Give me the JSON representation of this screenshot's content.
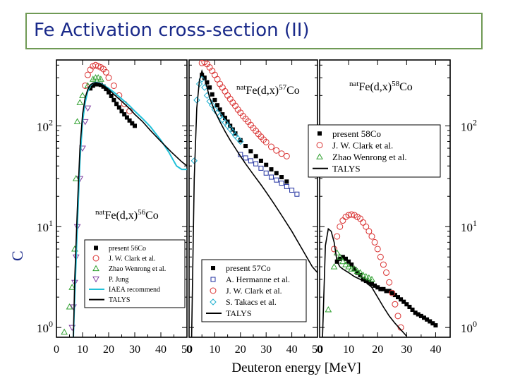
{
  "slide": {
    "title": "Fe  Activation cross-section (II)",
    "y_axis_label_fragment": "C"
  },
  "chart_data": [
    {
      "type": "scatter",
      "reaction_label": "natFe(d,x)56Co",
      "reaction_prefix": "nat",
      "reaction_main": "Fe(d,x)",
      "reaction_mass": "56",
      "reaction_element": "Co",
      "xlabel": "",
      "xlim": [
        0,
        50
      ],
      "ylim": [
        0.8,
        450
      ],
      "log_y": true,
      "x_ticks": [
        0,
        10,
        20,
        30,
        40,
        50
      ],
      "legend": {
        "position": "bottom-right",
        "entries": [
          "present 56Co",
          "J. W. Clark et al.",
          "Zhao Wenrong et al.",
          "P. Jung",
          "IAEA recommend",
          "TALYS"
        ]
      },
      "series": [
        {
          "name": "present 56Co",
          "marker": "square-filled",
          "color": "#000000",
          "x": [
            13,
            14,
            15,
            16,
            17,
            18,
            19,
            20,
            21,
            22,
            23,
            24,
            25,
            26,
            27,
            28,
            29,
            30
          ],
          "y": [
            235,
            250,
            258,
            258,
            255,
            245,
            232,
            215,
            198,
            180,
            165,
            152,
            140,
            130,
            121,
            113,
            106,
            100
          ]
        },
        {
          "name": "J. W. Clark et al.",
          "marker": "circle-open",
          "color": "#d93030",
          "x": [
            11,
            12,
            13,
            14,
            15,
            16,
            17,
            18,
            19,
            20,
            22,
            24,
            26,
            28
          ],
          "y": [
            250,
            320,
            360,
            390,
            400,
            390,
            380,
            365,
            340,
            300,
            250,
            200,
            165,
            140
          ]
        },
        {
          "name": "Zhao Wenrong et al.",
          "marker": "triangle-up-open",
          "color": "#30a030",
          "x": [
            3,
            5,
            6,
            7,
            7.5,
            8,
            9,
            10,
            12,
            14,
            15,
            16,
            17
          ],
          "y": [
            0.9,
            1.6,
            2.5,
            6,
            30,
            110,
            170,
            200,
            250,
            290,
            300,
            300,
            290
          ]
        },
        {
          "name": "P. Jung",
          "marker": "triangle-down-open",
          "color": "#8040a0",
          "x": [
            6,
            6.5,
            7,
            7.5,
            8,
            9,
            10,
            11,
            12
          ],
          "y": [
            1.0,
            1.6,
            2.8,
            5,
            10,
            30,
            60,
            110,
            150
          ]
        },
        {
          "name": "IAEA recommend",
          "marker": "line",
          "color": "#20c0d8",
          "x": [
            6.5,
            7,
            8,
            9,
            10,
            11,
            12,
            13,
            14,
            15,
            16,
            17,
            18,
            20,
            22,
            25,
            28,
            30,
            33,
            36,
            40,
            43,
            46,
            48,
            50
          ],
          "y": [
            0.8,
            2,
            10,
            45,
            110,
            170,
            220,
            250,
            265,
            270,
            268,
            262,
            255,
            235,
            215,
            185,
            158,
            140,
            118,
            98,
            72,
            55,
            40,
            37,
            37
          ]
        },
        {
          "name": "TALYS",
          "marker": "line",
          "color": "#000000",
          "x": [
            6.5,
            7,
            8,
            9,
            10,
            11,
            12,
            13,
            14,
            15,
            16,
            17,
            18,
            20,
            22,
            25,
            28,
            30,
            33,
            36,
            40,
            44,
            48,
            50
          ],
          "y": [
            0.8,
            3,
            15,
            60,
            130,
            190,
            230,
            255,
            265,
            268,
            266,
            260,
            252,
            230,
            205,
            175,
            148,
            130,
            110,
            90,
            70,
            55,
            44,
            40
          ]
        }
      ]
    },
    {
      "type": "scatter",
      "reaction_label": "natFe(d,x)57Co",
      "reaction_prefix": "nat",
      "reaction_main": "Fe(d,x)",
      "reaction_mass": "57",
      "reaction_element": "Co",
      "xlabel": "",
      "xlim": [
        0,
        50
      ],
      "ylim": [
        0.8,
        450
      ],
      "log_y": true,
      "x_ticks": [
        0,
        10,
        20,
        30,
        40,
        50
      ],
      "legend": {
        "position": "bottom-right",
        "entries": [
          "present 57Co",
          "A. Hermanne et al.",
          "J. W. Clark et al.",
          "S. Takacs et al.",
          "TALYS"
        ]
      },
      "series": [
        {
          "name": "present 57Co",
          "marker": "square-filled",
          "color": "#000000",
          "x": [
            5,
            6,
            7,
            8,
            9,
            10,
            11,
            12,
            13,
            14,
            15,
            16,
            17,
            18,
            20,
            22,
            24,
            26,
            28,
            30,
            32,
            34,
            36,
            38
          ],
          "y": [
            320,
            300,
            270,
            240,
            205,
            180,
            160,
            145,
            130,
            120,
            110,
            100,
            92,
            84,
            72,
            63,
            56,
            50,
            45,
            41,
            37,
            34,
            31,
            28
          ]
        },
        {
          "name": "A. Hermanne et al.",
          "marker": "square-open",
          "color": "#2030a0",
          "x": [
            20,
            22,
            24,
            26,
            28,
            30,
            32,
            34,
            36,
            38,
            40,
            42
          ],
          "y": [
            52,
            48,
            45,
            42,
            38,
            34,
            31,
            29,
            27,
            25,
            23,
            21
          ]
        },
        {
          "name": "J. W. Clark et al.",
          "marker": "circle-open",
          "color": "#d93030",
          "x": [
            5,
            6,
            7,
            8,
            9,
            10,
            11,
            12,
            13,
            14,
            15,
            16,
            17,
            18,
            19,
            20,
            21,
            22,
            23,
            24,
            25,
            26,
            27,
            28,
            29,
            30,
            32,
            34,
            36,
            38
          ],
          "y": [
            420,
            430,
            410,
            380,
            350,
            320,
            290,
            260,
            240,
            220,
            200,
            185,
            170,
            158,
            145,
            135,
            125,
            117,
            110,
            102,
            95,
            89,
            83,
            78,
            73,
            69,
            62,
            57,
            53,
            50
          ]
        },
        {
          "name": "S. Takacs et al.",
          "marker": "diamond-open",
          "color": "#20b0d0",
          "x": [
            2,
            3,
            4,
            5,
            6,
            7,
            8,
            9,
            10,
            11,
            12,
            13,
            14,
            15,
            16,
            17,
            18,
            19,
            20
          ],
          "y": [
            45,
            180,
            260,
            290,
            240,
            200,
            175,
            160,
            145,
            135,
            125,
            115,
            108,
            100,
            93,
            87,
            80,
            75,
            70
          ]
        },
        {
          "name": "TALYS",
          "marker": "line",
          "color": "#000000",
          "x": [
            1,
            2,
            3,
            4,
            5,
            6,
            7,
            8,
            10,
            12,
            14,
            16,
            18,
            20,
            22,
            25,
            28,
            30,
            33,
            36,
            40,
            44,
            48,
            50
          ],
          "y": [
            0.8,
            30,
            150,
            280,
            350,
            300,
            240,
            190,
            140,
            110,
            88,
            72,
            60,
            50,
            42,
            33,
            26,
            22,
            17,
            13,
            9,
            6,
            4,
            3.5
          ]
        }
      ]
    },
    {
      "type": "scatter",
      "reaction_label": "natFe(d,x)58Co",
      "reaction_prefix": "nat",
      "reaction_main": "Fe(d,x)",
      "reaction_mass": "58",
      "reaction_element": "Co",
      "xlabel": "Deuteron energy [MeV]",
      "xlim": [
        0,
        45
      ],
      "ylim": [
        0.8,
        450
      ],
      "log_y": true,
      "x_ticks": [
        0,
        10,
        20,
        30,
        40
      ],
      "y_ticks": [
        1,
        10,
        100
      ],
      "legend": {
        "position": "top-right",
        "entries": [
          "present 58Co",
          "J. W. Clark et al.",
          "Zhao Wenrong et al.",
          "TALYS"
        ]
      },
      "series": [
        {
          "name": "present 58Co",
          "marker": "square-filled",
          "color": "#000000",
          "x": [
            6,
            7,
            8,
            9,
            10,
            11,
            12,
            13,
            14,
            15,
            16,
            17,
            18,
            19,
            20,
            21,
            22,
            23,
            24,
            25,
            26,
            27,
            28,
            29,
            30,
            31,
            32,
            33,
            34,
            35,
            36,
            37,
            38,
            39,
            40
          ],
          "y": [
            4.5,
            4.8,
            5,
            4.8,
            4.5,
            4.2,
            3.8,
            3.5,
            3.3,
            3.0,
            2.9,
            2.8,
            2.7,
            2.6,
            2.5,
            2.4,
            2.4,
            2.3,
            2.3,
            2.2,
            2.1,
            2.0,
            1.9,
            1.8,
            1.7,
            1.6,
            1.5,
            1.4,
            1.35,
            1.3,
            1.25,
            1.2,
            1.15,
            1.1,
            1.05
          ]
        },
        {
          "name": "J. W. Clark et al.",
          "marker": "circle-open",
          "color": "#d93030",
          "x": [
            5,
            6,
            7,
            8,
            9,
            10,
            11,
            12,
            13,
            14,
            15,
            16,
            17,
            18,
            19,
            20,
            21,
            22,
            23,
            24,
            25,
            26,
            27,
            28
          ],
          "y": [
            6,
            8,
            10,
            11.5,
            12.5,
            13,
            13.2,
            13,
            12.5,
            12,
            11,
            10,
            9,
            8,
            7,
            6,
            5,
            4.2,
            3.5,
            2.8,
            2.2,
            1.7,
            1.3,
            1.0
          ]
        },
        {
          "name": "Zhao Wenrong et al.",
          "marker": "triangle-up-open",
          "color": "#30a030",
          "x": [
            3,
            5,
            6,
            7,
            8,
            9,
            10,
            11,
            12,
            13,
            14,
            15,
            16,
            17,
            18
          ],
          "y": [
            1.5,
            4.0,
            5.5,
            5.0,
            4.5,
            4.2,
            4.0,
            3.8,
            3.8,
            3.6,
            3.5,
            3.3,
            3.2,
            3.1,
            3.0
          ]
        },
        {
          "name": "TALYS",
          "marker": "line",
          "color": "#000000",
          "x": [
            1,
            2,
            3,
            4,
            5,
            6,
            7,
            8,
            10,
            12,
            14,
            16,
            18,
            20,
            22,
            24,
            26,
            28,
            30
          ],
          "y": [
            0.8,
            6.5,
            9.5,
            9.0,
            7.0,
            4.5,
            4.0,
            3.8,
            3.5,
            3.2,
            3.0,
            2.8,
            2.5,
            2.0,
            1.6,
            1.3,
            1.1,
            0.95,
            0.82
          ]
        }
      ]
    }
  ]
}
